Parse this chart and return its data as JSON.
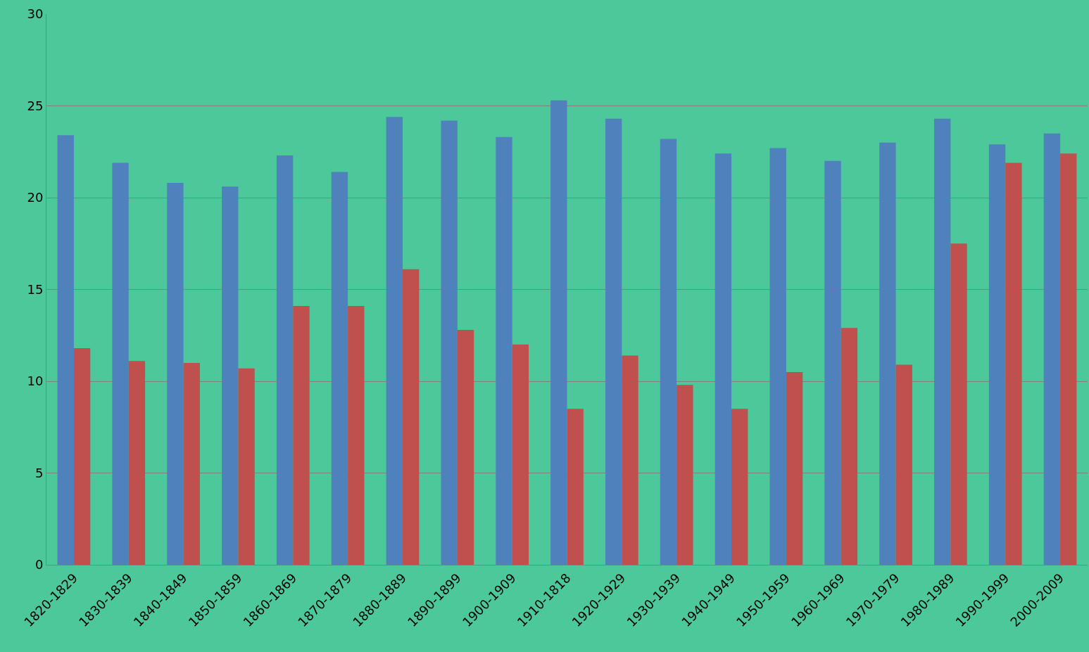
{
  "chart_data": {
    "type": "bar",
    "categories": [
      "1820-1829",
      "1830-1839",
      "1840-1849",
      "1850-1859",
      "1860-1869",
      "1870-1879",
      "1880-1889",
      "1890-1899",
      "1900-1909",
      "1910-1818",
      "1920-1929",
      "1930-1939",
      "1940-1949",
      "1950-1959",
      "1960-1969",
      "1970-1979",
      "1980-1989",
      "1990-1999",
      "2000-2009"
    ],
    "series": [
      {
        "color": "#4f81bd",
        "values": [
          23.4,
          21.9,
          20.8,
          20.6,
          22.3,
          21.4,
          24.4,
          24.2,
          23.3,
          25.3,
          24.3,
          23.2,
          22.4,
          22.7,
          22.0,
          23.0,
          24.3,
          22.9,
          23.5
        ]
      },
      {
        "color": "#c0504d",
        "values": [
          11.8,
          11.1,
          11.0,
          10.7,
          14.1,
          14.1,
          16.1,
          12.8,
          12.0,
          8.5,
          11.4,
          9.8,
          8.5,
          10.5,
          12.9,
          10.9,
          17.5,
          21.9,
          22.4
        ]
      }
    ],
    "ylim": [
      0,
      30
    ],
    "yticks": [
      0,
      5,
      10,
      15,
      20,
      25,
      30
    ],
    "grid": "y"
  }
}
